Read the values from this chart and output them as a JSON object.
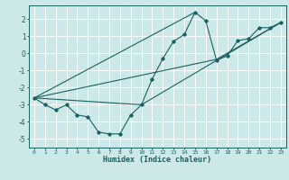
{
  "xlabel": "Humidex (Indice chaleur)",
  "xlim": [
    -0.5,
    23.5
  ],
  "ylim": [
    -5.5,
    2.8
  ],
  "yticks": [
    -5,
    -4,
    -3,
    -2,
    -1,
    0,
    1,
    2
  ],
  "xticks": [
    0,
    1,
    2,
    3,
    4,
    5,
    6,
    7,
    8,
    9,
    10,
    11,
    12,
    13,
    14,
    15,
    16,
    17,
    18,
    19,
    20,
    21,
    22,
    23
  ],
  "bg_color": "#cce8e8",
  "line_color": "#1a6060",
  "grid_color": "#ffffff",
  "series": [
    [
      0,
      -2.6
    ],
    [
      1,
      -3.0
    ],
    [
      2,
      -3.3
    ],
    [
      3,
      -3.0
    ],
    [
      4,
      -3.6
    ],
    [
      5,
      -3.7
    ],
    [
      6,
      -4.6
    ],
    [
      7,
      -4.7
    ],
    [
      8,
      -4.7
    ],
    [
      9,
      -3.6
    ],
    [
      10,
      -3.0
    ],
    [
      11,
      -1.5
    ],
    [
      12,
      -0.3
    ],
    [
      13,
      0.7
    ],
    [
      14,
      1.1
    ],
    [
      15,
      2.4
    ],
    [
      16,
      1.9
    ],
    [
      17,
      -0.4
    ],
    [
      18,
      -0.15
    ],
    [
      19,
      0.75
    ],
    [
      20,
      0.85
    ],
    [
      21,
      1.5
    ],
    [
      22,
      1.5
    ],
    [
      23,
      1.8
    ]
  ],
  "line2": [
    [
      0,
      -2.6
    ],
    [
      15,
      2.4
    ]
  ],
  "line3": [
    [
      0,
      -2.6
    ],
    [
      17,
      -0.35
    ],
    [
      23,
      1.8
    ]
  ],
  "line4": [
    [
      0,
      -2.6
    ],
    [
      10,
      -3.0
    ],
    [
      23,
      1.8
    ]
  ]
}
